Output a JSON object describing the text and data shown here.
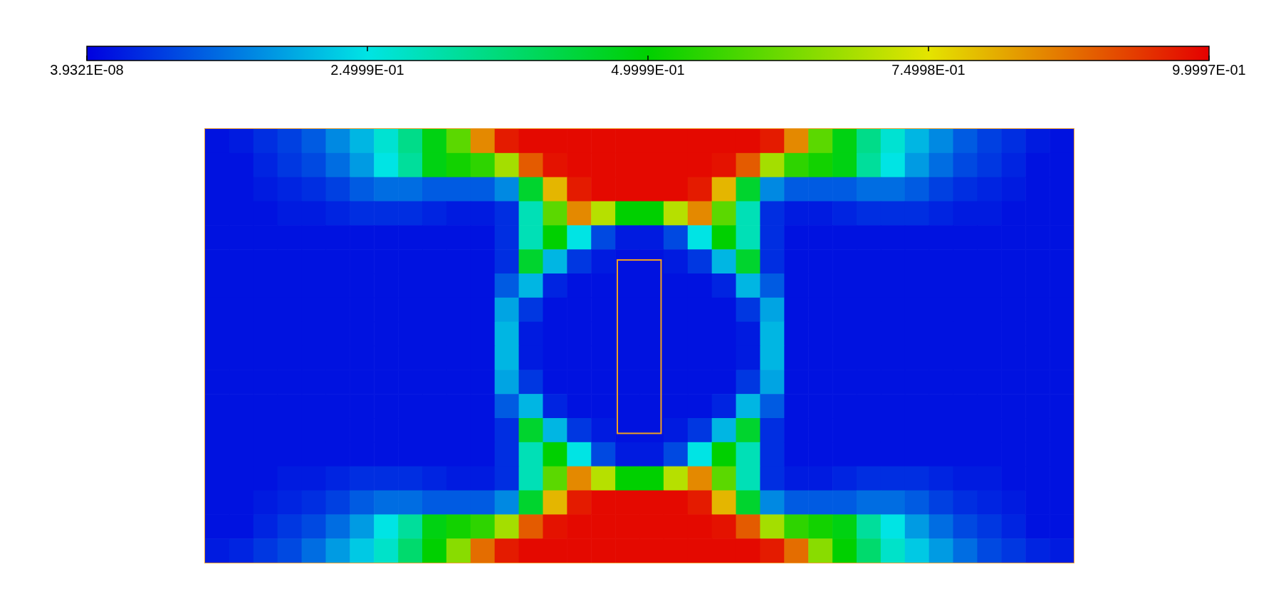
{
  "chart_data": {
    "type": "heatmap",
    "categories": [
      null,
      null,
      null,
      null,
      null,
      null,
      null,
      null,
      null,
      null,
      null,
      null,
      null,
      null,
      null,
      null,
      null,
      null,
      null,
      null,
      null,
      null,
      null,
      null,
      null,
      null,
      null,
      null,
      null,
      null,
      null,
      null,
      null,
      null,
      null,
      null
    ],
    "y_categories": [
      null,
      null,
      null,
      null,
      null,
      null,
      null,
      null,
      null,
      null,
      null,
      null,
      null,
      null,
      null,
      null,
      null,
      null
    ],
    "clim": [
      3.9321e-08,
      0.99997
    ],
    "cticks": [
      {
        "value": 3.9321e-08,
        "label": "3.9321E-08"
      },
      {
        "value": 0.24999,
        "label": "2.4999E-01"
      },
      {
        "value": 0.49999,
        "label": "4.9999E-01"
      },
      {
        "value": 0.74998,
        "label": "7.4998E-01"
      },
      {
        "value": 0.99997,
        "label": "9.9997E-01"
      }
    ],
    "cells": [
      [
        0.02,
        0.03,
        0.05,
        0.07,
        0.1,
        0.15,
        0.2,
        0.27,
        0.35,
        0.48,
        0.6,
        0.85,
        0.97,
        0.99,
        0.99,
        0.99,
        0.99,
        0.99,
        0.99,
        0.99,
        0.99,
        0.99,
        0.99,
        0.97,
        0.85,
        0.6,
        0.48,
        0.35,
        0.27,
        0.2,
        0.15,
        0.1,
        0.07,
        0.05,
        0.03,
        0.02
      ],
      [
        0.02,
        0.02,
        0.04,
        0.06,
        0.08,
        0.12,
        0.17,
        0.25,
        0.33,
        0.48,
        0.52,
        0.55,
        0.68,
        0.9,
        0.98,
        0.99,
        0.99,
        0.99,
        0.99,
        0.99,
        0.99,
        0.98,
        0.9,
        0.68,
        0.55,
        0.52,
        0.48,
        0.33,
        0.25,
        0.17,
        0.12,
        0.08,
        0.06,
        0.04,
        0.02,
        0.02
      ],
      [
        0.02,
        0.02,
        0.03,
        0.04,
        0.05,
        0.07,
        0.1,
        0.12,
        0.12,
        0.1,
        0.1,
        0.1,
        0.15,
        0.45,
        0.8,
        0.97,
        0.99,
        0.99,
        0.99,
        0.99,
        0.97,
        0.8,
        0.45,
        0.15,
        0.1,
        0.1,
        0.1,
        0.12,
        0.12,
        0.1,
        0.07,
        0.05,
        0.04,
        0.03,
        0.02,
        0.02
      ],
      [
        0.02,
        0.02,
        0.02,
        0.03,
        0.03,
        0.04,
        0.05,
        0.05,
        0.05,
        0.04,
        0.03,
        0.03,
        0.05,
        0.3,
        0.6,
        0.85,
        0.7,
        0.5,
        0.5,
        0.7,
        0.85,
        0.6,
        0.3,
        0.05,
        0.03,
        0.03,
        0.04,
        0.05,
        0.05,
        0.05,
        0.04,
        0.03,
        0.03,
        0.02,
        0.02,
        0.02
      ],
      [
        0.02,
        0.02,
        0.02,
        0.02,
        0.02,
        0.02,
        0.02,
        0.02,
        0.02,
        0.02,
        0.02,
        0.02,
        0.05,
        0.3,
        0.5,
        0.25,
        0.08,
        0.03,
        0.03,
        0.08,
        0.25,
        0.5,
        0.3,
        0.05,
        0.02,
        0.02,
        0.02,
        0.02,
        0.02,
        0.02,
        0.02,
        0.02,
        0.02,
        0.02,
        0.02,
        0.02
      ],
      [
        0.02,
        0.02,
        0.02,
        0.02,
        0.02,
        0.02,
        0.02,
        0.02,
        0.02,
        0.02,
        0.02,
        0.02,
        0.05,
        0.45,
        0.2,
        0.06,
        0.03,
        0.02,
        0.02,
        0.03,
        0.06,
        0.2,
        0.45,
        0.05,
        0.02,
        0.02,
        0.02,
        0.02,
        0.02,
        0.02,
        0.02,
        0.02,
        0.02,
        0.02,
        0.02,
        0.02
      ],
      [
        0.02,
        0.02,
        0.02,
        0.02,
        0.02,
        0.02,
        0.02,
        0.02,
        0.02,
        0.02,
        0.02,
        0.02,
        0.1,
        0.2,
        0.04,
        0.02,
        0.02,
        0.02,
        0.02,
        0.02,
        0.02,
        0.04,
        0.2,
        0.1,
        0.02,
        0.02,
        0.02,
        0.02,
        0.02,
        0.02,
        0.02,
        0.02,
        0.02,
        0.02,
        0.02,
        0.02
      ],
      [
        0.02,
        0.02,
        0.02,
        0.02,
        0.02,
        0.02,
        0.02,
        0.02,
        0.02,
        0.02,
        0.02,
        0.02,
        0.18,
        0.06,
        0.02,
        0.02,
        0.02,
        0.02,
        0.02,
        0.02,
        0.02,
        0.02,
        0.06,
        0.18,
        0.02,
        0.02,
        0.02,
        0.02,
        0.02,
        0.02,
        0.02,
        0.02,
        0.02,
        0.02,
        0.02,
        0.02
      ],
      [
        0.02,
        0.02,
        0.02,
        0.02,
        0.02,
        0.02,
        0.02,
        0.02,
        0.02,
        0.02,
        0.02,
        0.02,
        0.2,
        0.03,
        0.02,
        0.02,
        0.02,
        0.02,
        0.02,
        0.02,
        0.02,
        0.02,
        0.03,
        0.2,
        0.02,
        0.02,
        0.02,
        0.02,
        0.02,
        0.02,
        0.02,
        0.02,
        0.02,
        0.02,
        0.02,
        0.02
      ],
      [
        0.02,
        0.02,
        0.02,
        0.02,
        0.02,
        0.02,
        0.02,
        0.02,
        0.02,
        0.02,
        0.02,
        0.02,
        0.2,
        0.03,
        0.02,
        0.02,
        0.02,
        0.02,
        0.02,
        0.02,
        0.02,
        0.02,
        0.03,
        0.2,
        0.02,
        0.02,
        0.02,
        0.02,
        0.02,
        0.02,
        0.02,
        0.02,
        0.02,
        0.02,
        0.02,
        0.02
      ],
      [
        0.02,
        0.02,
        0.02,
        0.02,
        0.02,
        0.02,
        0.02,
        0.02,
        0.02,
        0.02,
        0.02,
        0.02,
        0.18,
        0.06,
        0.02,
        0.02,
        0.02,
        0.02,
        0.02,
        0.02,
        0.02,
        0.02,
        0.06,
        0.18,
        0.02,
        0.02,
        0.02,
        0.02,
        0.02,
        0.02,
        0.02,
        0.02,
        0.02,
        0.02,
        0.02,
        0.02
      ],
      [
        0.02,
        0.02,
        0.02,
        0.02,
        0.02,
        0.02,
        0.02,
        0.02,
        0.02,
        0.02,
        0.02,
        0.02,
        0.1,
        0.2,
        0.04,
        0.02,
        0.02,
        0.02,
        0.02,
        0.02,
        0.02,
        0.04,
        0.2,
        0.1,
        0.02,
        0.02,
        0.02,
        0.02,
        0.02,
        0.02,
        0.02,
        0.02,
        0.02,
        0.02,
        0.02,
        0.02
      ],
      [
        0.02,
        0.02,
        0.02,
        0.02,
        0.02,
        0.02,
        0.02,
        0.02,
        0.02,
        0.02,
        0.02,
        0.02,
        0.05,
        0.45,
        0.2,
        0.06,
        0.03,
        0.02,
        0.02,
        0.03,
        0.06,
        0.2,
        0.45,
        0.05,
        0.02,
        0.02,
        0.02,
        0.02,
        0.02,
        0.02,
        0.02,
        0.02,
        0.02,
        0.02,
        0.02,
        0.02
      ],
      [
        0.02,
        0.02,
        0.02,
        0.02,
        0.02,
        0.02,
        0.02,
        0.02,
        0.02,
        0.02,
        0.02,
        0.02,
        0.05,
        0.3,
        0.5,
        0.25,
        0.08,
        0.03,
        0.03,
        0.08,
        0.25,
        0.5,
        0.3,
        0.05,
        0.02,
        0.02,
        0.02,
        0.02,
        0.02,
        0.02,
        0.02,
        0.02,
        0.02,
        0.02,
        0.02,
        0.02
      ],
      [
        0.02,
        0.02,
        0.02,
        0.03,
        0.03,
        0.04,
        0.05,
        0.05,
        0.05,
        0.04,
        0.03,
        0.03,
        0.05,
        0.3,
        0.6,
        0.85,
        0.7,
        0.5,
        0.5,
        0.7,
        0.85,
        0.6,
        0.3,
        0.05,
        0.03,
        0.03,
        0.04,
        0.05,
        0.05,
        0.05,
        0.04,
        0.03,
        0.03,
        0.02,
        0.02,
        0.02
      ],
      [
        0.02,
        0.02,
        0.03,
        0.04,
        0.05,
        0.07,
        0.1,
        0.12,
        0.12,
        0.1,
        0.1,
        0.1,
        0.15,
        0.45,
        0.8,
        0.97,
        0.99,
        0.99,
        0.99,
        0.99,
        0.97,
        0.8,
        0.45,
        0.15,
        0.1,
        0.1,
        0.1,
        0.12,
        0.12,
        0.1,
        0.07,
        0.05,
        0.04,
        0.03,
        0.02,
        0.02
      ],
      [
        0.02,
        0.02,
        0.04,
        0.06,
        0.08,
        0.12,
        0.17,
        0.25,
        0.33,
        0.48,
        0.52,
        0.55,
        0.68,
        0.9,
        0.98,
        0.99,
        0.99,
        0.99,
        0.99,
        0.99,
        0.99,
        0.98,
        0.9,
        0.68,
        0.55,
        0.52,
        0.48,
        0.33,
        0.25,
        0.17,
        0.12,
        0.08,
        0.06,
        0.04,
        0.02,
        0.02
      ],
      [
        0.03,
        0.04,
        0.06,
        0.08,
        0.12,
        0.17,
        0.22,
        0.28,
        0.38,
        0.5,
        0.65,
        0.88,
        0.97,
        0.99,
        0.99,
        0.99,
        0.99,
        0.99,
        0.99,
        0.99,
        0.99,
        0.99,
        0.99,
        0.97,
        0.88,
        0.65,
        0.5,
        0.38,
        0.28,
        0.22,
        0.17,
        0.12,
        0.08,
        0.06,
        0.04,
        0.03
      ]
    ]
  }
}
